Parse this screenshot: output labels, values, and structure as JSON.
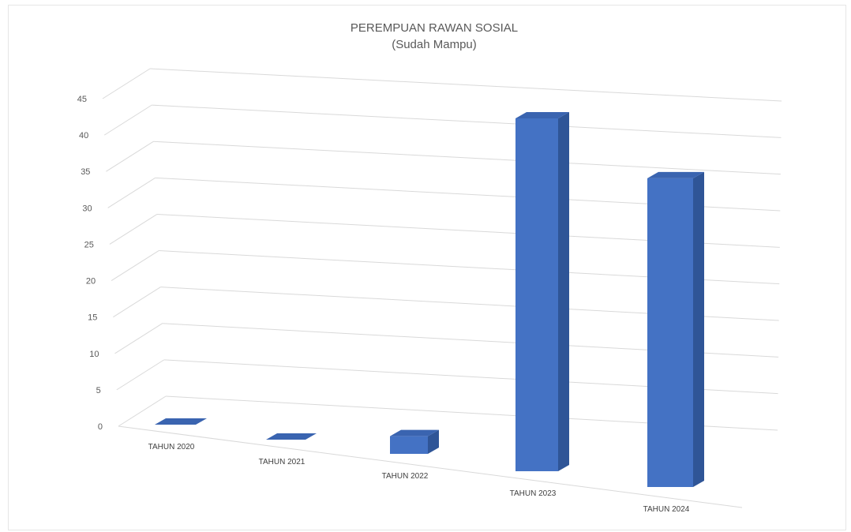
{
  "chart_data": {
    "type": "bar",
    "title": "PEREMPUAN RAWAN SOSIAL",
    "subtitle": "(Sudah Mampu)",
    "categories": [
      "TAHUN 2020",
      "TAHUN 2021",
      "TAHUN 2022",
      "TAHUN 2023",
      "TAHUN 2024"
    ],
    "values": [
      0,
      0,
      2,
      40,
      35
    ],
    "ylim": [
      0,
      45
    ],
    "yticks": [
      "0",
      "5",
      "10",
      "15",
      "20",
      "25",
      "30",
      "35",
      "40",
      "45"
    ],
    "grid": true,
    "three_d": true,
    "colors": {
      "front": "#4472C4",
      "side": "#2F5597",
      "top": "#3A64B0",
      "grid": "#d9d9d9"
    }
  }
}
